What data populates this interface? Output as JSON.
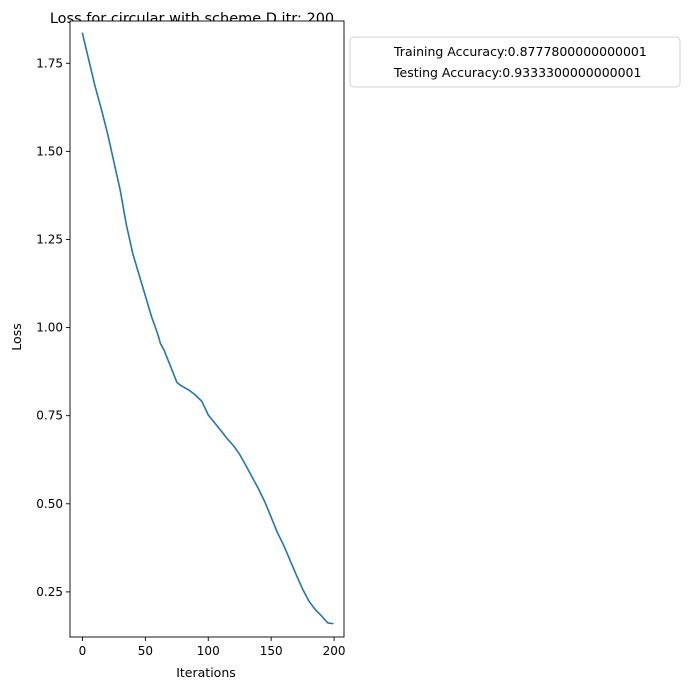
{
  "chart_data": {
    "type": "line",
    "title": "Loss for circular with scheme D itr: 200",
    "xlabel": "Iterations",
    "ylabel": "Loss",
    "xlim": [
      -9.9,
      207.9
    ],
    "ylim": [
      0.122,
      1.87
    ],
    "xticks": [
      0,
      50,
      100,
      150,
      200
    ],
    "yticks": [
      0.25,
      0.5,
      0.75,
      1.0,
      1.25,
      1.5,
      1.75
    ],
    "xtick_labels": [
      "0",
      "50",
      "100",
      "150",
      "200"
    ],
    "ytick_labels": [
      "0.25",
      "0.50",
      "0.75",
      "1.00",
      "1.25",
      "1.50",
      "1.75"
    ],
    "grid": false,
    "legend": {
      "placement": "outside upper right",
      "entries": [
        "Training Accuracy:0.8777800000000001",
        "Testing Accuracy:0.9333300000000001"
      ]
    },
    "series": [
      {
        "color": "#1f77b4",
        "x": [
          0,
          5,
          10,
          15,
          20,
          25,
          30,
          33,
          35,
          40,
          45,
          50,
          55,
          60,
          62,
          65,
          70,
          75,
          78,
          80,
          85,
          90,
          95,
          100,
          105,
          110,
          115,
          120,
          125,
          130,
          135,
          140,
          145,
          150,
          155,
          160,
          165,
          170,
          175,
          180,
          185,
          190,
          195,
          199
        ],
        "y": [
          1.835,
          1.76,
          1.685,
          1.62,
          1.55,
          1.47,
          1.39,
          1.33,
          1.29,
          1.21,
          1.15,
          1.09,
          1.03,
          0.98,
          0.955,
          0.935,
          0.89,
          0.845,
          0.836,
          0.832,
          0.822,
          0.808,
          0.79,
          0.752,
          0.73,
          0.708,
          0.685,
          0.665,
          0.64,
          0.608,
          0.575,
          0.542,
          0.505,
          0.462,
          0.418,
          0.382,
          0.34,
          0.298,
          0.258,
          0.224,
          0.2,
          0.182,
          0.162,
          0.16
        ]
      }
    ]
  }
}
